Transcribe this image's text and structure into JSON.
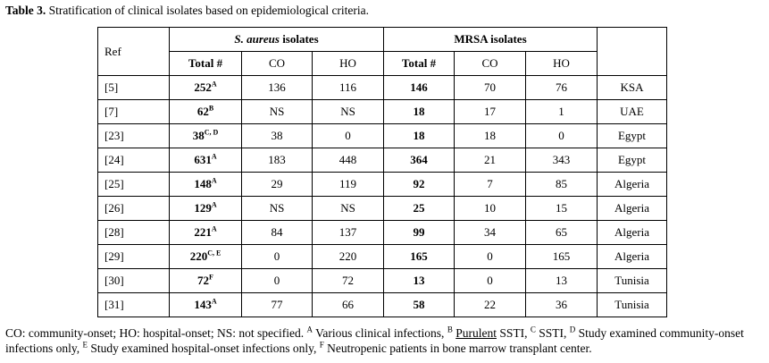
{
  "caption": {
    "label": "Table 3.",
    "text": "Stratification of clinical isolates based on epidemiological criteria."
  },
  "table": {
    "ref_header": "Ref",
    "group1_italic": "S. aureus",
    "group1_rest": " isolates",
    "group2": "MRSA isolates",
    "subheaders": [
      "Total #",
      "CO",
      "HO",
      "Total #",
      "CO",
      "HO"
    ],
    "rows": [
      {
        "ref": "[5]",
        "sa_total": "252",
        "sa_sup": "A",
        "sa_co": "136",
        "sa_ho": "116",
        "mrsa_total": "146",
        "mrsa_co": "70",
        "mrsa_ho": "76",
        "country": "KSA"
      },
      {
        "ref": "[7]",
        "sa_total": "62",
        "sa_sup": "B",
        "sa_co": "NS",
        "sa_ho": "NS",
        "mrsa_total": "18",
        "mrsa_co": "17",
        "mrsa_ho": "1",
        "country": "UAE"
      },
      {
        "ref": "[23]",
        "sa_total": "38",
        "sa_sup": "C, D",
        "sa_co": "38",
        "sa_ho": "0",
        "mrsa_total": "18",
        "mrsa_co": "18",
        "mrsa_ho": "0",
        "country": "Egypt"
      },
      {
        "ref": "[24]",
        "sa_total": "631",
        "sa_sup": "A",
        "sa_co": "183",
        "sa_ho": "448",
        "mrsa_total": "364",
        "mrsa_co": "21",
        "mrsa_ho": "343",
        "country": "Egypt"
      },
      {
        "ref": "[25]",
        "sa_total": "148",
        "sa_sup": "A",
        "sa_co": "29",
        "sa_ho": "119",
        "mrsa_total": "92",
        "mrsa_co": "7",
        "mrsa_ho": "85",
        "country": "Algeria"
      },
      {
        "ref": "[26]",
        "sa_total": "129",
        "sa_sup": "A",
        "sa_co": "NS",
        "sa_ho": "NS",
        "mrsa_total": "25",
        "mrsa_co": "10",
        "mrsa_ho": "15",
        "country": "Algeria"
      },
      {
        "ref": "[28]",
        "sa_total": "221",
        "sa_sup": "A",
        "sa_co": "84",
        "sa_ho": "137",
        "mrsa_total": "99",
        "mrsa_co": "34",
        "mrsa_ho": "65",
        "country": "Algeria"
      },
      {
        "ref": "[29]",
        "sa_total": "220",
        "sa_sup": "C, E",
        "sa_co": "0",
        "sa_ho": "220",
        "mrsa_total": "165",
        "mrsa_co": "0",
        "mrsa_ho": "165",
        "country": "Algeria"
      },
      {
        "ref": "[30]",
        "sa_total": "72",
        "sa_sup": "F",
        "sa_co": "0",
        "sa_ho": "72",
        "mrsa_total": "13",
        "mrsa_co": "0",
        "mrsa_ho": "13",
        "country": "Tunisia"
      },
      {
        "ref": "[31]",
        "sa_total": "143",
        "sa_sup": "A",
        "sa_co": "77",
        "sa_ho": "66",
        "mrsa_total": "58",
        "mrsa_co": "22",
        "mrsa_ho": "36",
        "country": "Tunisia"
      }
    ]
  },
  "footnote": {
    "p1": "CO: community-onset; HO: hospital-onset; NS: not specified. ",
    "sA": "A",
    "tA": " Various clinical infections, ",
    "sB": "B",
    "tB_pre": " ",
    "tB_u": "Purulent",
    "tB_post": " SSTI, ",
    "sC": "C",
    "tC": " SSTI, ",
    "sD": "D",
    "tD": " Study examined community-onset infections only, ",
    "sE": "E",
    "tE": " Study examined hospital-onset infections only, ",
    "sF": "F",
    "tF": " Neutropenic patients in bone marrow transplant center."
  }
}
